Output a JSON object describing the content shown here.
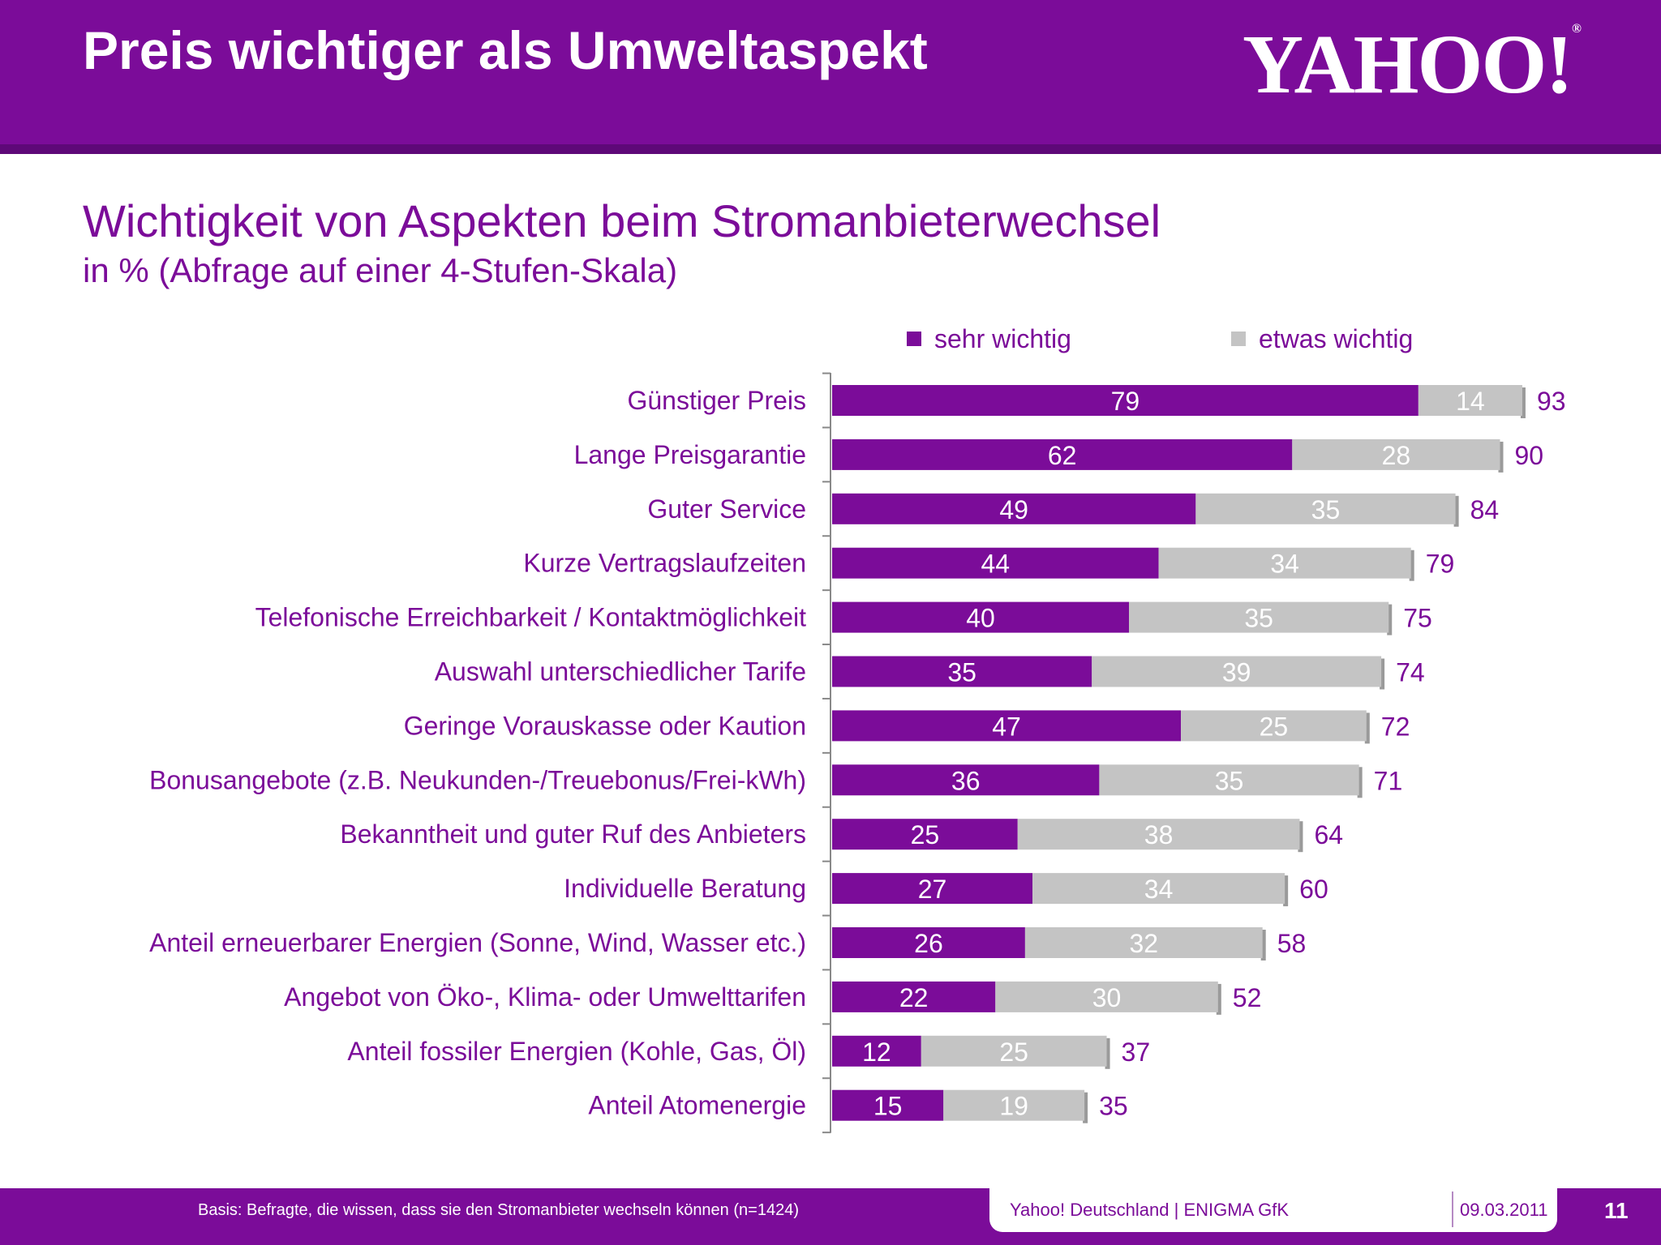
{
  "header": {
    "title": "Preis wichtiger als Umweltaspekt",
    "logo_text": "YAHOO!"
  },
  "colors": {
    "brand": "#7b0c99",
    "secondary": "#c4c4c4"
  },
  "chart_data": {
    "type": "bar",
    "orientation": "horizontal",
    "stacked": true,
    "title": "Wichtigkeit von Aspekten beim Stromanbieterwechsel",
    "subtitle": "in % (Abfrage auf einer 4-Stufen-Skala)",
    "legend_position": "top",
    "xlim": [
      0,
      100
    ],
    "grid": false,
    "categories": [
      "Günstiger Preis",
      "Lange Preisgarantie",
      "Guter Service",
      "Kurze Vertragslaufzeiten",
      "Telefonische Erreichbarkeit / Kontaktmöglichkeit",
      "Auswahl unterschiedlicher Tarife",
      "Geringe Vorauskasse oder Kaution",
      "Bonusangebote (z.B. Neukunden-/Treuebonus/Frei-kWh)",
      "Bekanntheit und guter Ruf des Anbieters",
      "Individuelle Beratung",
      "Anteil erneuerbarer Energien (Sonne, Wind, Wasser etc.)",
      "Angebot von Öko-, Klima- oder Umwelttarifen",
      "Anteil fossiler Energien (Kohle, Gas, Öl)",
      "Anteil Atomenergie"
    ],
    "series": [
      {
        "name": "sehr wichtig",
        "color": "#7b0c99",
        "values": [
          79,
          62,
          49,
          44,
          40,
          35,
          47,
          36,
          25,
          27,
          26,
          22,
          12,
          15
        ]
      },
      {
        "name": "etwas wichtig",
        "color": "#c4c4c4",
        "values": [
          14,
          28,
          35,
          34,
          35,
          39,
          25,
          35,
          38,
          34,
          32,
          30,
          25,
          19
        ]
      }
    ],
    "totals": [
      93,
      90,
      84,
      79,
      75,
      74,
      72,
      71,
      64,
      60,
      58,
      52,
      37,
      35
    ]
  },
  "footer": {
    "basis": "Basis: Befragte, die wissen, dass sie den Stromanbieter wechseln können (n=1424)",
    "source": "Yahoo! Deutschland | ENIGMA GfK",
    "date": "09.03.2011",
    "page": "11"
  }
}
